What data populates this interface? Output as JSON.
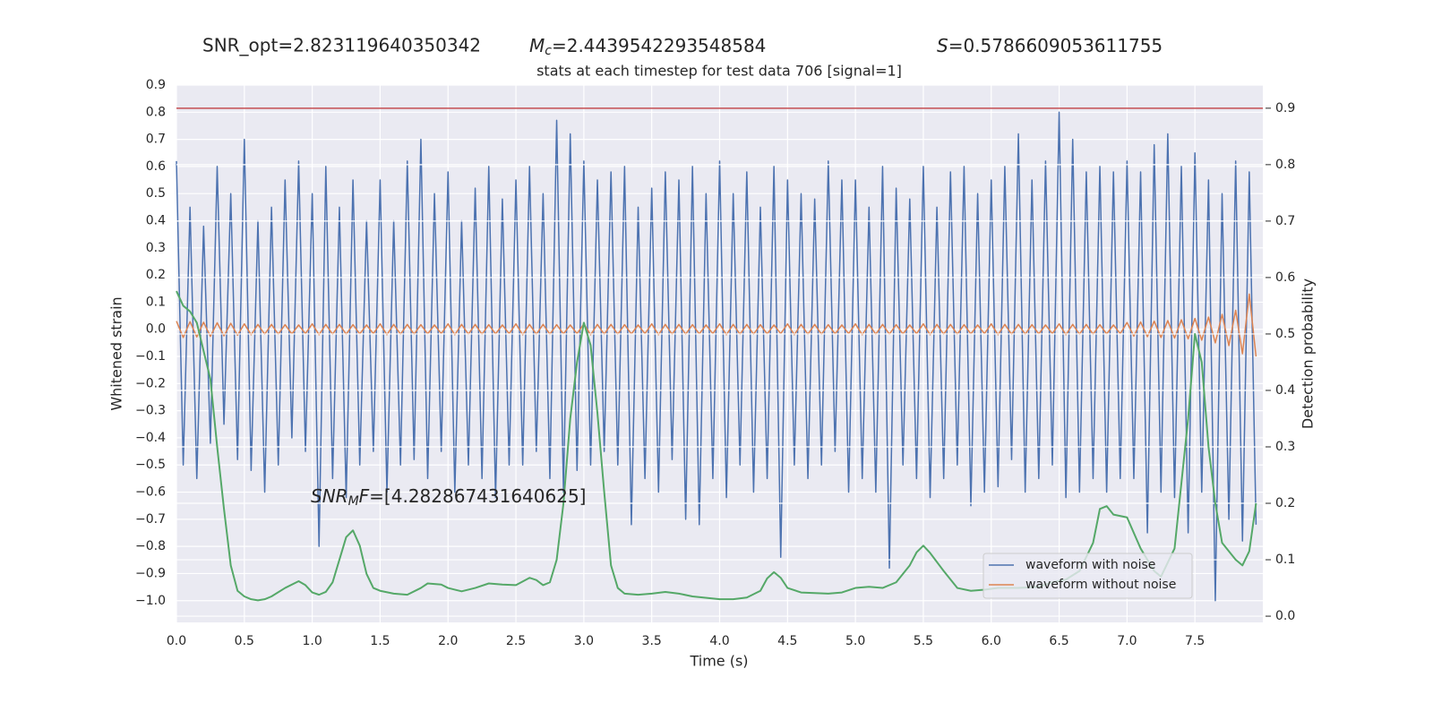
{
  "chart_data": {
    "type": "line",
    "title": "stats at each timestep for test data 706 [signal=1]",
    "annotations": {
      "snr_opt": "SNR_opt=2.823119640350342",
      "chirp_mass": {
        "symbol": "M",
        "subscript": "c",
        "text": "=2.4439542293548584"
      },
      "spin": {
        "symbol": "S",
        "text": "=0.5786609053611755"
      },
      "snr_mf": {
        "symbol": "SNR",
        "subscript": "M",
        "symbol2": "F",
        "text": "=[4.282867431640625]"
      }
    },
    "xlabel": "Time (s)",
    "ylabel": "Whitened strain",
    "y2label": "Detection probability",
    "xlim": [
      0,
      8.0
    ],
    "ylim": [
      -1.08,
      0.9
    ],
    "y2lim": [
      -0.011,
      0.941
    ],
    "xticks": [
      {
        "value": 0,
        "label": "0.0"
      },
      0.5,
      {
        "value": 1,
        "label": "1.0"
      },
      1.5,
      {
        "value": 2,
        "label": "2.0"
      },
      2.5,
      {
        "value": 3,
        "label": "3.0"
      },
      3.5,
      {
        "value": 4,
        "label": "4.0"
      },
      4.5,
      {
        "value": 5,
        "label": "5.0"
      },
      5.5,
      {
        "value": 6,
        "label": "6.0"
      },
      6.5,
      {
        "value": 7,
        "label": "7.0"
      },
      7.5
    ],
    "yticks": [
      {
        "value": -1,
        "label": "−1.0"
      },
      {
        "value": -0.9,
        "label": "−0.9"
      },
      {
        "value": -0.8,
        "label": "−0.8"
      },
      {
        "value": -0.7,
        "label": "−0.7"
      },
      {
        "value": -0.6,
        "label": "−0.6"
      },
      {
        "value": -0.5,
        "label": "−0.5"
      },
      {
        "value": -0.4,
        "label": "−0.4"
      },
      {
        "value": -0.3,
        "label": "−0.3"
      },
      {
        "value": -0.2,
        "label": "−0.2"
      },
      {
        "value": -0.1,
        "label": "−0.1"
      },
      {
        "value": 0,
        "label": "0.0"
      },
      0.1,
      0.2,
      0.3,
      0.4,
      0.5,
      0.6,
      0.7,
      0.8,
      0.9
    ],
    "y2ticks": [
      {
        "value": 0,
        "label": "0.0"
      },
      0.1,
      0.2,
      0.3,
      0.4,
      0.5,
      0.6,
      0.7,
      0.8,
      0.9
    ],
    "grid": true,
    "legend": "lower right",
    "threshold": {
      "value": 0.9,
      "color": "#c44e52",
      "axis": "y2"
    },
    "x": [
      0,
      0.05,
      0.1,
      0.15,
      0.2,
      0.25,
      0.3,
      0.35,
      0.4,
      0.45,
      0.5,
      0.55,
      0.6,
      0.65,
      0.7,
      0.75,
      0.8,
      0.85,
      0.9,
      0.95,
      1.0,
      1.05,
      1.1,
      1.15,
      1.2,
      1.25,
      1.3,
      1.35,
      1.4,
      1.45,
      1.5,
      1.55,
      1.6,
      1.65,
      1.7,
      1.75,
      1.8,
      1.85,
      1.9,
      1.95,
      2.0,
      2.05,
      2.1,
      2.15,
      2.2,
      2.25,
      2.3,
      2.35,
      2.4,
      2.45,
      2.5,
      2.55,
      2.6,
      2.65,
      2.7,
      2.75,
      2.8,
      2.85,
      2.9,
      2.95,
      3.0,
      3.05,
      3.1,
      3.15,
      3.2,
      3.25,
      3.3,
      3.35,
      3.4,
      3.45,
      3.5,
      3.55,
      3.6,
      3.65,
      3.7,
      3.75,
      3.8,
      3.85,
      3.9,
      3.95,
      4.0,
      4.05,
      4.1,
      4.15,
      4.2,
      4.25,
      4.3,
      4.35,
      4.4,
      4.45,
      4.5,
      4.55,
      4.6,
      4.65,
      4.7,
      4.75,
      4.8,
      4.85,
      4.9,
      4.95,
      5.0,
      5.05,
      5.1,
      5.15,
      5.2,
      5.25,
      5.3,
      5.35,
      5.4,
      5.45,
      5.5,
      5.55,
      5.6,
      5.65,
      5.7,
      5.75,
      5.8,
      5.85,
      5.9,
      5.95,
      6.0,
      6.05,
      6.1,
      6.15,
      6.2,
      6.25,
      6.3,
      6.35,
      6.4,
      6.45,
      6.5,
      6.55,
      6.6,
      6.65,
      6.7,
      6.75,
      6.8,
      6.85,
      6.9,
      6.95,
      7.0,
      7.05,
      7.1,
      7.15,
      7.2,
      7.25,
      7.3,
      7.35,
      7.4,
      7.45,
      7.5,
      7.55,
      7.6,
      7.65,
      7.7,
      7.75,
      7.8,
      7.85,
      7.9,
      7.95
    ],
    "series": [
      {
        "name": "waveform with noise",
        "color": "#4c72b0",
        "values": [
          0.62,
          -0.5,
          0.45,
          -0.55,
          0.38,
          -0.42,
          0.6,
          -0.35,
          0.5,
          -0.48,
          0.7,
          -0.52,
          0.4,
          -0.6,
          0.45,
          -0.5,
          0.55,
          -0.4,
          0.62,
          -0.45,
          0.5,
          -0.8,
          0.6,
          -0.55,
          0.45,
          -0.62,
          0.55,
          -0.5,
          0.4,
          -0.45,
          0.55,
          -0.6,
          0.4,
          -0.5,
          0.62,
          -0.48,
          0.7,
          -0.55,
          0.5,
          -0.45,
          0.58,
          -0.6,
          0.4,
          -0.5,
          0.52,
          -0.55,
          0.6,
          -0.62,
          0.48,
          -0.5,
          0.55,
          -0.5,
          0.6,
          -0.45,
          0.5,
          -0.55,
          0.77,
          -0.6,
          0.72,
          -0.52,
          0.62,
          -0.5,
          0.55,
          -0.45,
          0.58,
          -0.5,
          0.6,
          -0.72,
          0.45,
          -0.55,
          0.52,
          -0.6,
          0.58,
          -0.48,
          0.55,
          -0.7,
          0.6,
          -0.72,
          0.5,
          -0.55,
          0.62,
          -0.62,
          0.5,
          -0.5,
          0.58,
          -0.6,
          0.45,
          -0.55,
          0.6,
          -0.84,
          0.55,
          -0.5,
          0.5,
          -0.55,
          0.48,
          -0.5,
          0.62,
          -0.45,
          0.55,
          -0.6,
          0.55,
          -0.55,
          0.45,
          -0.6,
          0.6,
          -0.88,
          0.52,
          -0.5,
          0.48,
          -0.55,
          0.6,
          -0.62,
          0.45,
          -0.55,
          0.58,
          -0.5,
          0.6,
          -0.65,
          0.5,
          -0.6,
          0.55,
          -0.58,
          0.6,
          -0.48,
          0.72,
          -0.6,
          0.55,
          -0.55,
          0.62,
          -0.5,
          0.8,
          -0.62,
          0.7,
          -0.6,
          0.58,
          -0.55,
          0.6,
          -0.6,
          0.58,
          -0.55,
          0.62,
          -0.55,
          0.58,
          -0.75,
          0.68,
          -0.6,
          0.72,
          -0.62,
          0.6,
          -0.75,
          0.65,
          -0.6,
          0.55,
          -1.0,
          0.5,
          -0.7,
          0.62,
          -0.78,
          0.58,
          -0.72
        ]
      },
      {
        "name": "waveform without noise",
        "color": "#dd8452",
        "values": [
          0.03,
          -0.03,
          0.028,
          -0.028,
          0.026,
          -0.026,
          0.024,
          -0.024,
          0.022,
          -0.022,
          0.02,
          -0.02,
          0.018,
          -0.018,
          0.018,
          -0.018,
          0.017,
          -0.017,
          0.016,
          -0.016,
          0.02,
          -0.02,
          0.018,
          -0.018,
          0.018,
          -0.018,
          0.017,
          -0.017,
          0.016,
          -0.016,
          0.02,
          -0.02,
          0.018,
          -0.018,
          0.018,
          -0.018,
          0.017,
          -0.017,
          0.016,
          -0.016,
          0.02,
          -0.02,
          0.018,
          -0.018,
          0.018,
          -0.018,
          0.017,
          -0.017,
          0.016,
          -0.016,
          0.02,
          -0.02,
          0.018,
          -0.018,
          0.018,
          -0.018,
          0.017,
          -0.017,
          0.016,
          -0.016,
          0.02,
          -0.02,
          0.018,
          -0.018,
          0.018,
          -0.018,
          0.017,
          -0.017,
          0.016,
          -0.016,
          0.02,
          -0.02,
          0.018,
          -0.018,
          0.018,
          -0.018,
          0.017,
          -0.017,
          0.016,
          -0.016,
          0.02,
          -0.02,
          0.018,
          -0.018,
          0.018,
          -0.018,
          0.017,
          -0.017,
          0.016,
          -0.016,
          0.02,
          -0.02,
          0.018,
          -0.018,
          0.018,
          -0.018,
          0.017,
          -0.017,
          0.016,
          -0.016,
          0.02,
          -0.02,
          0.018,
          -0.018,
          0.018,
          -0.018,
          0.017,
          -0.017,
          0.016,
          -0.016,
          0.02,
          -0.02,
          0.018,
          -0.018,
          0.018,
          -0.018,
          0.017,
          -0.017,
          0.016,
          -0.016,
          0.02,
          -0.02,
          0.018,
          -0.018,
          0.018,
          -0.018,
          0.017,
          -0.017,
          0.016,
          -0.016,
          0.02,
          -0.02,
          0.018,
          -0.018,
          0.018,
          -0.018,
          0.017,
          -0.017,
          0.016,
          -0.016,
          0.025,
          -0.025,
          0.027,
          -0.027,
          0.03,
          -0.03,
          0.032,
          -0.032,
          0.035,
          -0.035,
          0.04,
          -0.04,
          0.045,
          -0.05,
          0.055,
          -0.06,
          0.07,
          -0.09,
          0.13,
          -0.1
        ]
      },
      {
        "color": "#55a868",
        "axis": "y2",
        "x": [
          0,
          0.05,
          0.1,
          0.15,
          0.2,
          0.25,
          0.3,
          0.35,
          0.4,
          0.45,
          0.5,
          0.55,
          0.6,
          0.65,
          0.7,
          0.8,
          0.9,
          0.95,
          1.0,
          1.05,
          1.1,
          1.15,
          1.2,
          1.25,
          1.3,
          1.35,
          1.4,
          1.45,
          1.5,
          1.6,
          1.7,
          1.8,
          1.85,
          1.95,
          2.0,
          2.1,
          2.2,
          2.3,
          2.4,
          2.5,
          2.6,
          2.65,
          2.7,
          2.75,
          2.8,
          2.85,
          2.9,
          2.95,
          3.0,
          3.05,
          3.1,
          3.15,
          3.2,
          3.25,
          3.3,
          3.4,
          3.5,
          3.6,
          3.7,
          3.8,
          4.0,
          4.1,
          4.2,
          4.3,
          4.35,
          4.4,
          4.45,
          4.5,
          4.6,
          4.8,
          4.9,
          5.0,
          5.1,
          5.2,
          5.3,
          5.4,
          5.45,
          5.5,
          5.55,
          5.65,
          5.75,
          5.85,
          5.95,
          6.05,
          6.2,
          6.35,
          6.45,
          6.55,
          6.65,
          6.75,
          6.8,
          6.85,
          6.9,
          7.0,
          7.1,
          7.2,
          7.25,
          7.35,
          7.45,
          7.5,
          7.55,
          7.6,
          7.65,
          7.7,
          7.8,
          7.85,
          7.9,
          7.95
        ],
        "values": [
          0.576,
          0.55,
          0.54,
          0.52,
          0.47,
          0.42,
          0.3,
          0.19,
          0.09,
          0.045,
          0.035,
          0.03,
          0.028,
          0.03,
          0.035,
          0.05,
          0.062,
          0.055,
          0.042,
          0.038,
          0.043,
          0.06,
          0.1,
          0.14,
          0.152,
          0.125,
          0.075,
          0.05,
          0.045,
          0.04,
          0.038,
          0.05,
          0.058,
          0.056,
          0.05,
          0.044,
          0.05,
          0.058,
          0.056,
          0.055,
          0.068,
          0.064,
          0.055,
          0.06,
          0.1,
          0.2,
          0.35,
          0.45,
          0.52,
          0.48,
          0.36,
          0.22,
          0.09,
          0.05,
          0.04,
          0.038,
          0.04,
          0.043,
          0.04,
          0.035,
          0.03,
          0.03,
          0.033,
          0.045,
          0.067,
          0.078,
          0.068,
          0.05,
          0.042,
          0.04,
          0.042,
          0.05,
          0.052,
          0.05,
          0.06,
          0.09,
          0.113,
          0.125,
          0.112,
          0.08,
          0.05,
          0.045,
          0.047,
          0.05,
          0.05,
          0.052,
          0.06,
          0.065,
          0.08,
          0.13,
          0.19,
          0.195,
          0.18,
          0.175,
          0.12,
          0.08,
          0.07,
          0.12,
          0.35,
          0.5,
          0.45,
          0.3,
          0.2,
          0.13,
          0.1,
          0.09,
          0.115,
          0.2
        ]
      }
    ]
  }
}
